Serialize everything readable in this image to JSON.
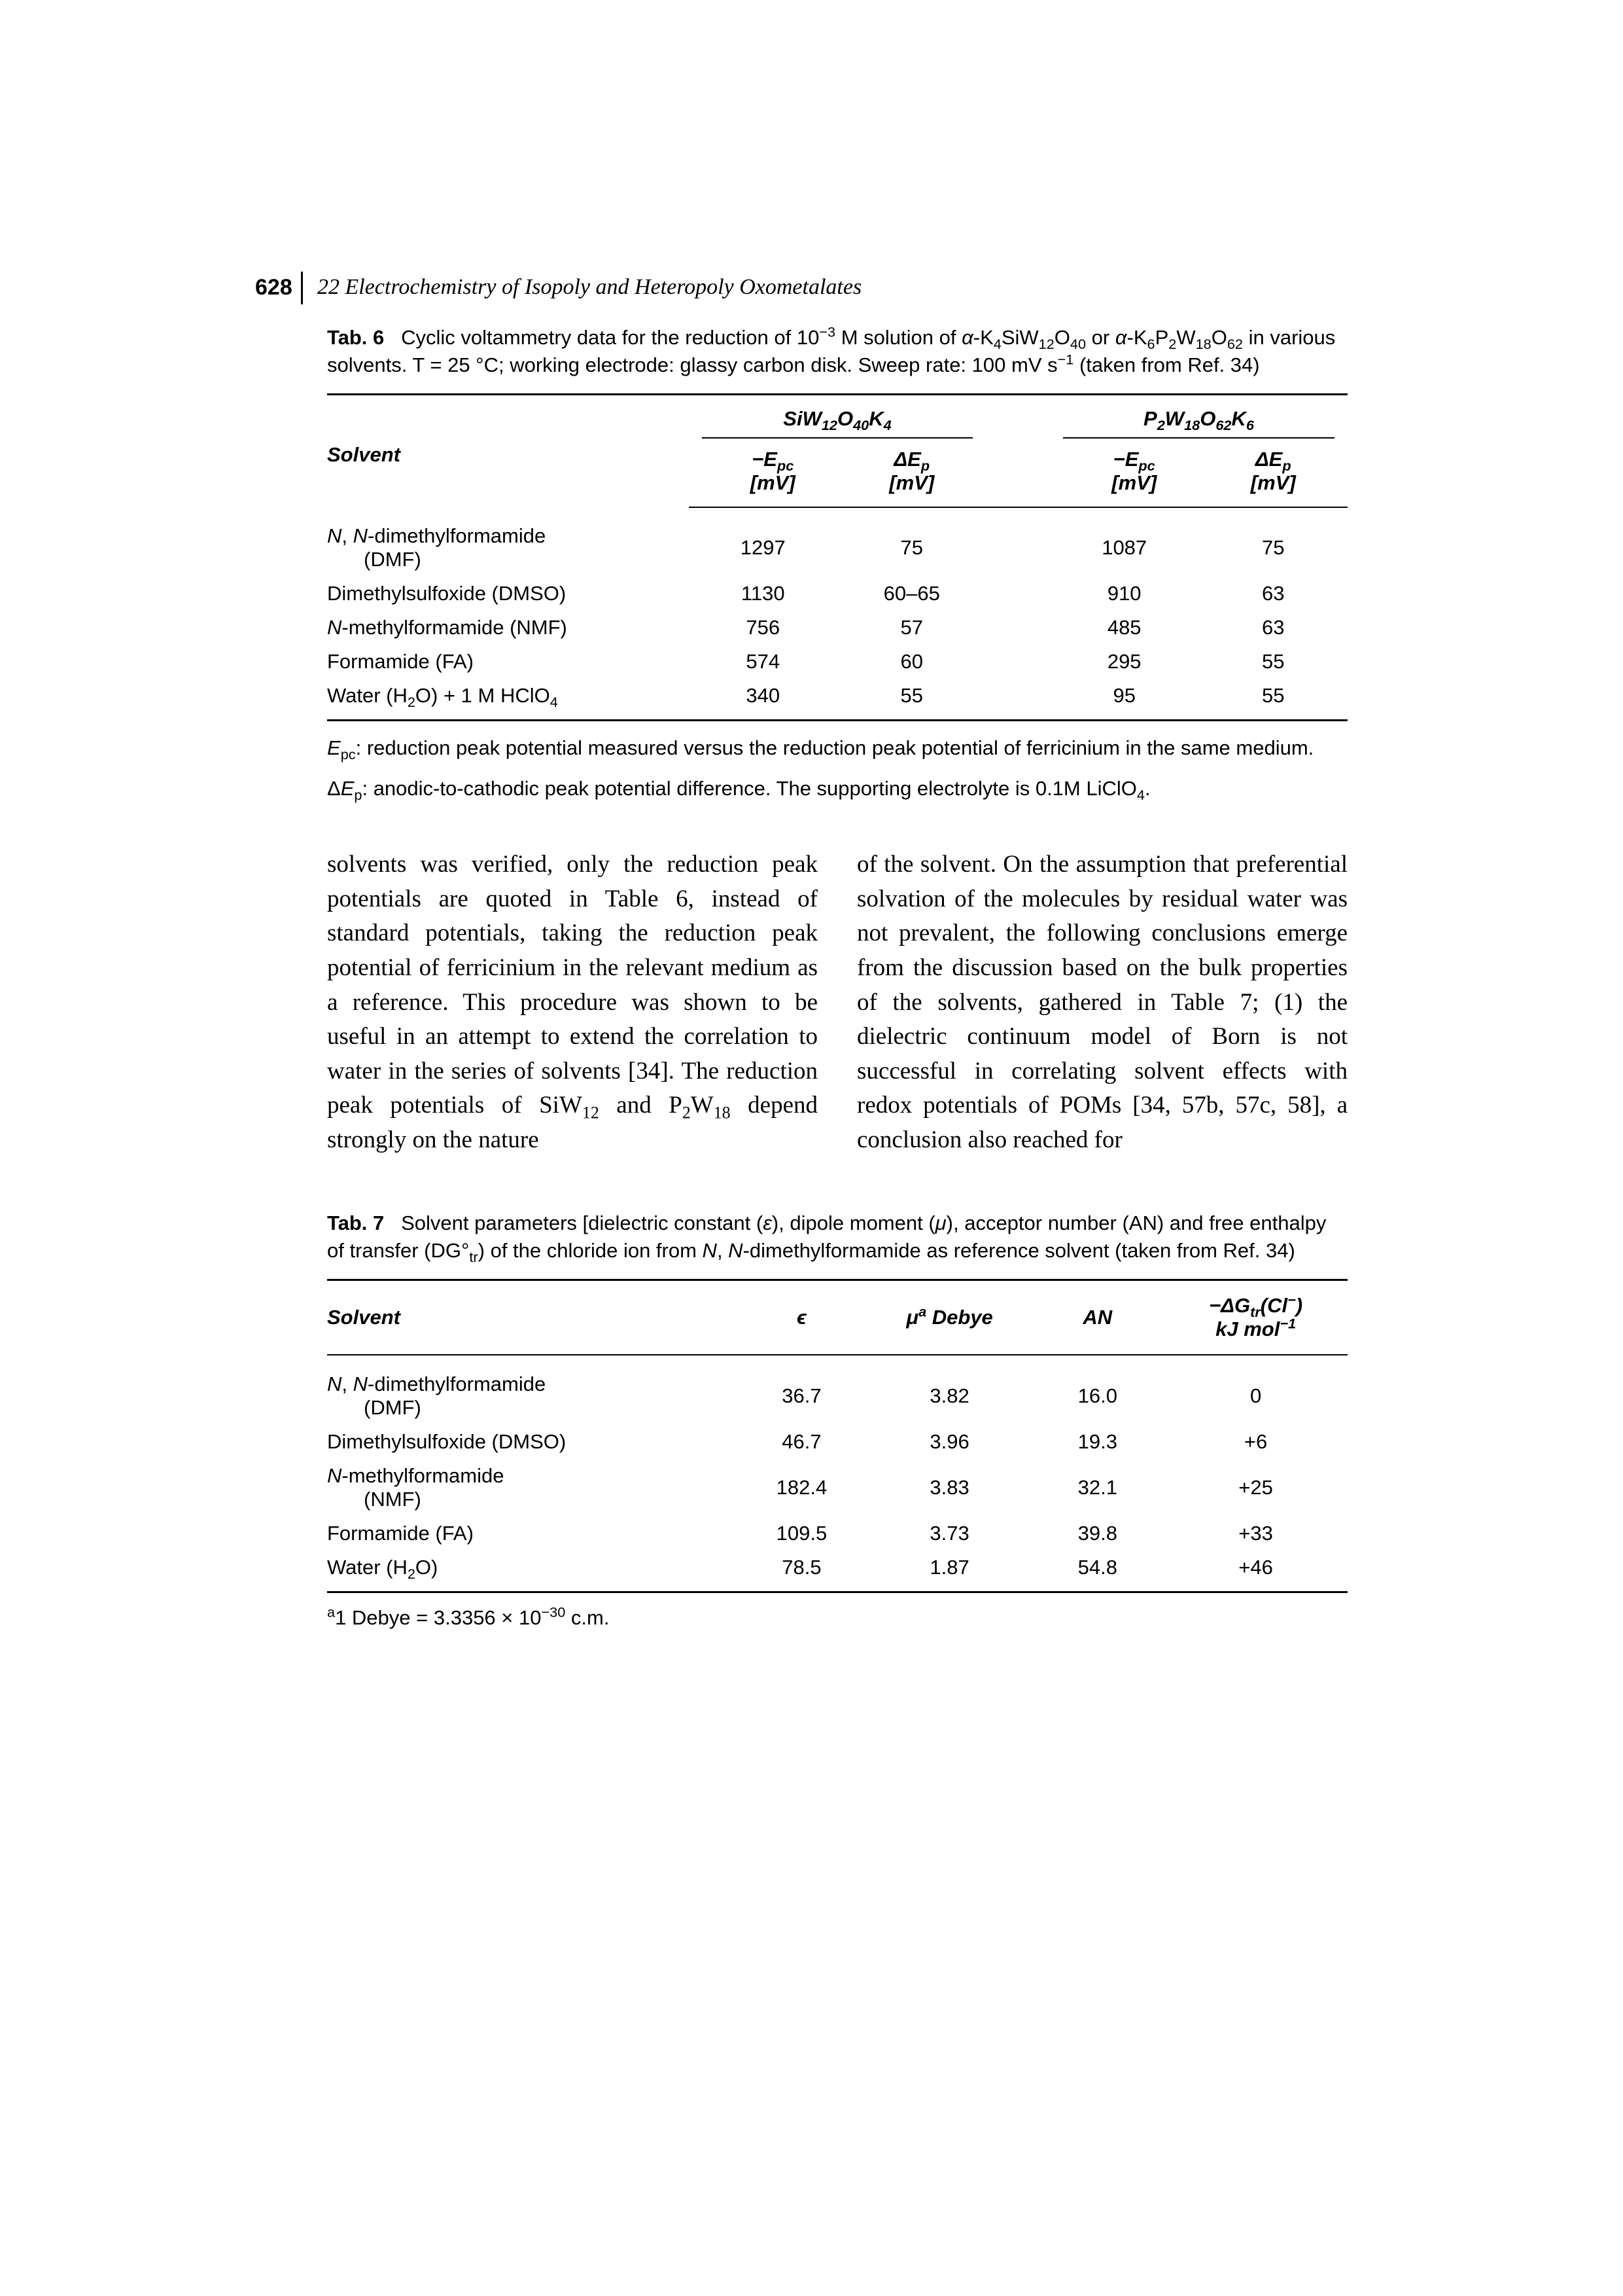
{
  "page_number": "628",
  "running_head": "22 Electrochemistry of Isopoly and Heteropoly Oxometalates",
  "tab6": {
    "caption_label": "Tab. 6",
    "caption_html": "Cyclic voltammetry data for the reduction of 10<sup>−3</sup> M solution of <i>α</i>-K<sub>4</sub>SiW<sub>12</sub>O<sub>40</sub> or <i>α</i>-K<sub>6</sub>P<sub>2</sub>W<sub>18</sub>O<sub>62</sub> in various solvents. T = 25 °C; working electrode: glassy carbon disk. Sweep rate: 100 mV s<sup>−1</sup> (taken from Ref. 34)",
    "header_solvent": "Solvent",
    "group1_html": "SiW<sub>12</sub>O<sub>40</sub>K<sub>4</sub>",
    "group2_html": "P<sub>2</sub>W<sub>18</sub>O<sub>62</sub>K<sub>6</sub>",
    "sub_epc_html": "−E<sub>pc</sub><br>[mV]",
    "sub_dep_html": "ΔE<sub>p</sub><br>[mV]",
    "rows": [
      {
        "solvent_html": "<i>N</i>, <i>N</i>-dimethylformamide<span class=\"indent\">(DMF)</span>",
        "a_epc": "1297",
        "a_dep": "75",
        "b_epc": "1087",
        "b_dep": "75"
      },
      {
        "solvent_html": "Dimethylsulfoxide (DMSO)",
        "a_epc": "1130",
        "a_dep": "60–65",
        "b_epc": "910",
        "b_dep": "63"
      },
      {
        "solvent_html": "<i>N</i>-methylformamide (NMF)",
        "a_epc": "756",
        "a_dep": "57",
        "b_epc": "485",
        "b_dep": "63"
      },
      {
        "solvent_html": "Formamide (FA)",
        "a_epc": "574",
        "a_dep": "60",
        "b_epc": "295",
        "b_dep": "55"
      },
      {
        "solvent_html": "Water (H<sub>2</sub>O) + 1 M HClO<sub>4</sub>",
        "a_epc": "340",
        "a_dep": "55",
        "b_epc": "95",
        "b_dep": "55"
      }
    ],
    "note1_html": "<i>E</i><sub>pc</sub>: reduction peak potential measured versus the reduction peak potential of ferricinium in the same medium.",
    "note2_html": "Δ<i>E</i><sub>p</sub>: anodic-to-cathodic peak potential difference. The supporting electrolyte is 0.1M LiClO<sub>4</sub>."
  },
  "body": {
    "col1_html": "solvents was verified, only the reduction peak potentials are quoted in Table 6, instead of standard potentials, taking the reduction peak potential of ferricinium in the relevant medium as a reference. This procedure was shown to be useful in an attempt to extend the correlation to water in the series of solvents [34]. The reduction peak potentials of SiW<sub>12</sub> and P<sub>2</sub>W<sub>18</sub> depend strongly on the nature",
    "col2_html": "of the solvent. On the assumption that preferential solvation of the molecules by residual water was not prevalent, the following conclusions emerge from the discussion based on the bulk properties of the solvents, gathered in Table 7; (1) the dielectric continuum model of Born is not successful in correlating solvent effects with redox potentials of POMs [34, 57b, 57c, 58], a conclusion also reached for"
  },
  "tab7": {
    "caption_label": "Tab. 7",
    "caption_html": "Solvent parameters [dielectric constant (<i>ε</i>), dipole moment (<i>μ</i>), acceptor number (AN) and free enthalpy of transfer (DG°<sub>tr</sub>) of the chloride ion from <i>N</i>, <i>N</i>-dimethylformamide as reference solvent (taken from Ref. 34)",
    "header_solvent": "Solvent",
    "header_eps": "ϵ",
    "header_mu_html": "μ<sup>a</sup> Debye",
    "header_an": "AN",
    "header_dg_html": "−ΔG<sub>tr</sub>(Cl<sup>−</sup>)<br>kJ mol<sup>−1</sup>",
    "rows": [
      {
        "solvent_html": "<i>N</i>, <i>N</i>-dimethylformamide<span class=\"indent\">(DMF)</span>",
        "eps": "36.7",
        "mu": "3.82",
        "an": "16.0",
        "dg": "0"
      },
      {
        "solvent_html": "Dimethylsulfoxide (DMSO)",
        "eps": "46.7",
        "mu": "3.96",
        "an": "19.3",
        "dg": "+6"
      },
      {
        "solvent_html": "<i>N</i>-methylformamide<span class=\"indent\">(NMF)</span>",
        "eps": "182.4",
        "mu": "3.83",
        "an": "32.1",
        "dg": "+25"
      },
      {
        "solvent_html": "Formamide (FA)",
        "eps": "109.5",
        "mu": "3.73",
        "an": "39.8",
        "dg": "+33"
      },
      {
        "solvent_html": "Water (H<sub>2</sub>O)",
        "eps": "78.5",
        "mu": "1.87",
        "an": "54.8",
        "dg": "+46"
      }
    ],
    "footnote_html": "<sup>a</sup>1 Debye = 3.3356 × 10<sup>−30</sup> c.m."
  }
}
